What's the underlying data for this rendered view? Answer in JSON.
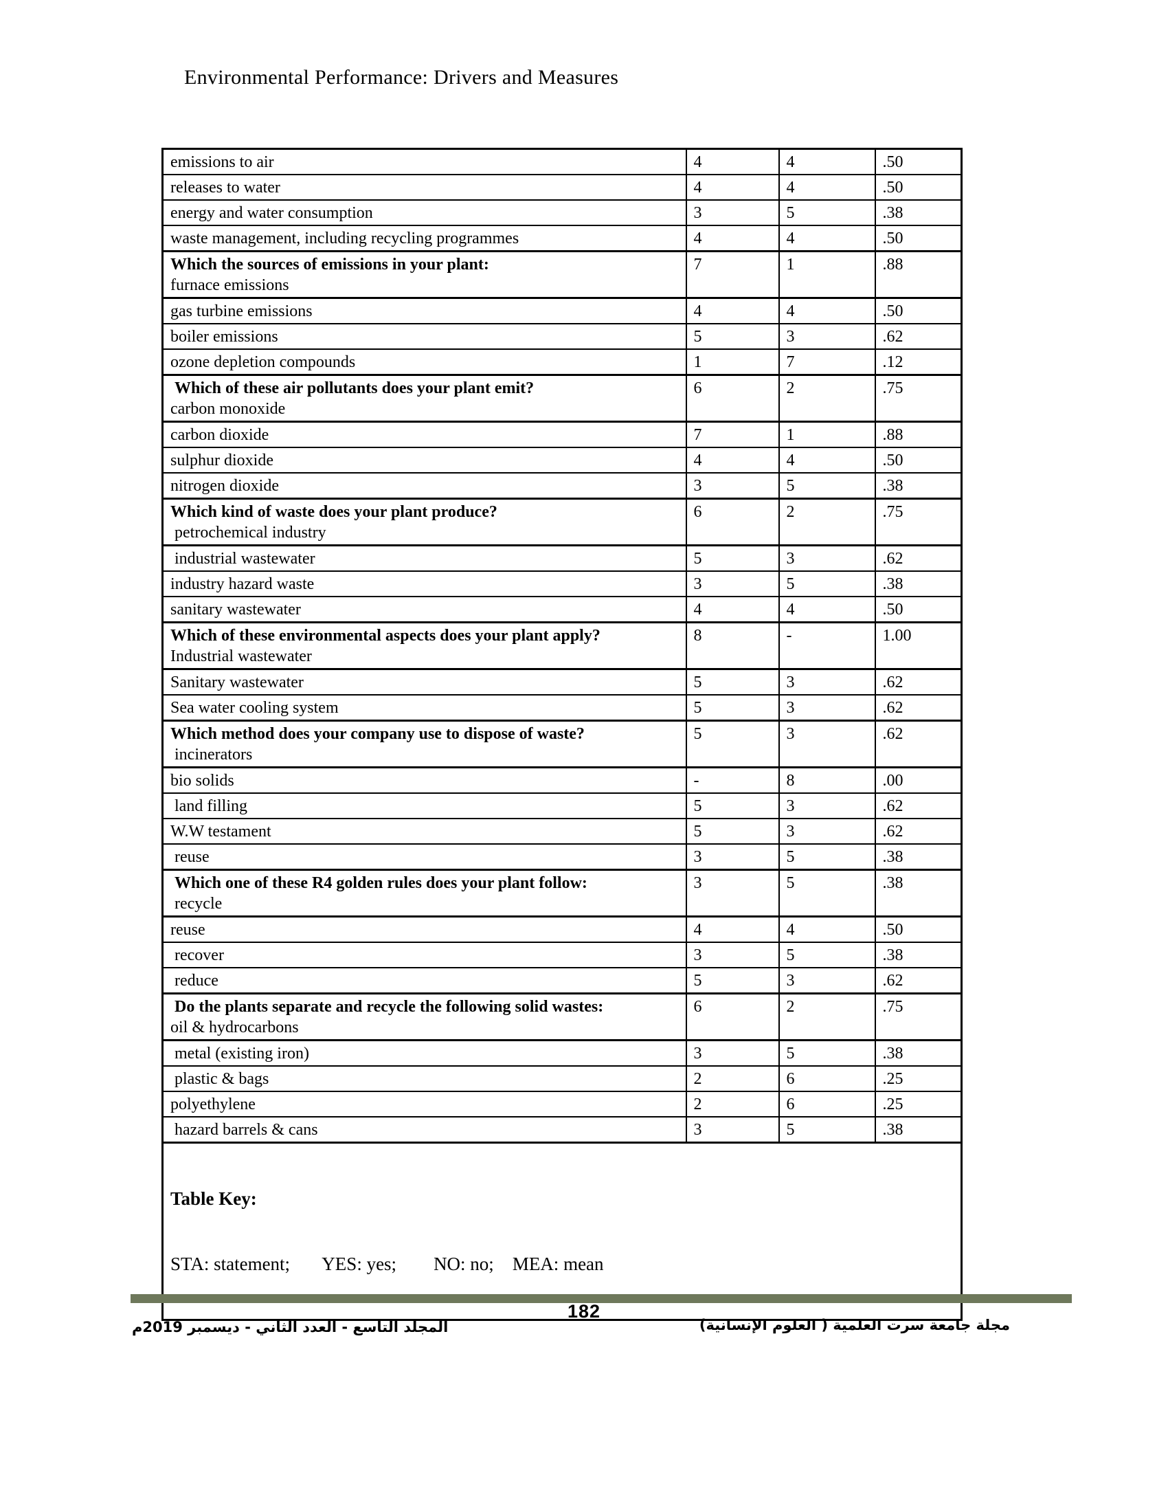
{
  "page": {
    "title": "Environmental Performance: Drivers and Measures",
    "page_number": "182",
    "footer_journal_ar": "مجلة جامعة سرت العلمية ( العلوم الإنسانية)",
    "footer_issue_ar": "المجلد التاسع - العدد الثاني - ديسمبر 2019م"
  },
  "colors": {
    "footer_bar": "#6e785b"
  },
  "table": {
    "rows": [
      {
        "statement": "emissions to air",
        "yes": "4",
        "no": "4",
        "mea": ".50"
      },
      {
        "statement": "releases to water",
        "yes": "4",
        "no": "4",
        "mea": ".50"
      },
      {
        "statement": "energy and water consumption",
        "yes": "3",
        "no": "5",
        "mea": ".38"
      },
      {
        "statement": "waste management, including recycling programmes",
        "yes": "4",
        "no": "4",
        "mea": ".50"
      },
      {
        "question": "Which the sources of emissions in your plant:",
        "statement": "furnace emissions",
        "yes": "7",
        "no": "1",
        "mea": ".88"
      },
      {
        "statement": "gas turbine emissions",
        "yes": "4",
        "no": "4",
        "mea": ".50"
      },
      {
        "statement": "boiler emissions",
        "yes": "5",
        "no": "3",
        "mea": ".62"
      },
      {
        "statement": "ozone depletion compounds",
        "yes": "1",
        "no": "7",
        "mea": ".12"
      },
      {
        "question": " Which of these air pollutants does your plant emit?",
        "statement": "carbon monoxide",
        "yes": "6",
        "no": "2",
        "mea": ".75"
      },
      {
        "statement": "carbon dioxide",
        "yes": "7",
        "no": "1",
        "mea": ".88"
      },
      {
        "statement": "sulphur dioxide",
        "yes": "4",
        "no": "4",
        "mea": ".50"
      },
      {
        "statement": "nitrogen dioxide",
        "yes": "3",
        "no": "5",
        "mea": ".38"
      },
      {
        "question": "Which kind of waste does your plant produce?",
        "statement": " petrochemical industry",
        "yes": "6",
        "no": "2",
        "mea": ".75"
      },
      {
        "statement": " industrial wastewater",
        "yes": "5",
        "no": "3",
        "mea": ".62"
      },
      {
        "statement": "industry hazard waste",
        "yes": "3",
        "no": "5",
        "mea": ".38"
      },
      {
        "statement": "sanitary wastewater",
        "yes": "4",
        "no": "4",
        "mea": ".50"
      },
      {
        "question": "Which of these environmental aspects does your plant apply?",
        "statement": "Industrial wastewater",
        "yes": "8",
        "no": "-",
        "mea": "1.00"
      },
      {
        "statement": "Sanitary wastewater",
        "yes": "5",
        "no": "3",
        "mea": ".62"
      },
      {
        "statement": "Sea water cooling system",
        "yes": "5",
        "no": "3",
        "mea": ".62"
      },
      {
        "question": "Which method does your company use to dispose of waste?",
        "statement": " incinerators",
        "yes": "5",
        "no": "3",
        "mea": ".62"
      },
      {
        "statement": "bio solids",
        "yes": "-",
        "no": "8",
        "mea": ".00"
      },
      {
        "statement": " land filling",
        "yes": "5",
        "no": "3",
        "mea": ".62"
      },
      {
        "statement": "W.W testament",
        "yes": "5",
        "no": "3",
        "mea": ".62"
      },
      {
        "statement": " reuse",
        "yes": "3",
        "no": "5",
        "mea": ".38"
      },
      {
        "question": " Which one of these R4 golden rules does your plant follow:",
        "statement": " recycle",
        "yes": "3",
        "no": "5",
        "mea": ".38"
      },
      {
        "statement": "reuse",
        "yes": "4",
        "no": "4",
        "mea": ".50"
      },
      {
        "statement": " recover",
        "yes": "3",
        "no": "5",
        "mea": ".38"
      },
      {
        "statement": " reduce",
        "yes": "5",
        "no": "3",
        "mea": ".62"
      },
      {
        "question": " Do the plants separate and recycle the following solid wastes:",
        "statement": "oil & hydrocarbons",
        "yes": "6",
        "no": "2",
        "mea": ".75"
      },
      {
        "statement": " metal (existing iron)",
        "yes": "3",
        "no": "5",
        "mea": ".38"
      },
      {
        "statement": " plastic & bags",
        "yes": "2",
        "no": "6",
        "mea": ".25"
      },
      {
        "statement": "polyethylene",
        "yes": "2",
        "no": "6",
        "mea": ".25"
      },
      {
        "statement": " hazard barrels & cans",
        "yes": "3",
        "no": "5",
        "mea": ".38"
      }
    ],
    "key": {
      "title": "Table Key:",
      "line": "STA: statement;       YES: yes;        NO: no;    MEA: mean"
    }
  }
}
